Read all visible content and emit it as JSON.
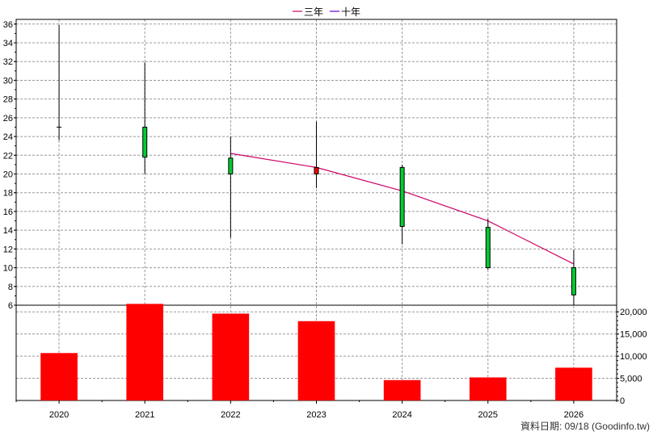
{
  "chart_data": {
    "type": "candlestick",
    "legend": {
      "position": "top-center",
      "items": [
        {
          "label": "三年",
          "color": "#cc0066"
        },
        {
          "label": "十年",
          "color": "#6600cc"
        }
      ]
    },
    "categories": [
      "2020",
      "2021",
      "2022",
      "2023",
      "2024",
      "2025",
      "2026"
    ],
    "candles": [
      {
        "year": "2020",
        "open": 25.0,
        "close": 25.0,
        "high": 35.9,
        "low": 23.6
      },
      {
        "year": "2021",
        "open": 21.8,
        "close": 25.0,
        "high": 31.9,
        "low": 20.0
      },
      {
        "year": "2022",
        "open": 20.0,
        "close": 21.7,
        "high": 24.0,
        "low": 13.2
      },
      {
        "year": "2023",
        "open": 20.7,
        "close": 20.0,
        "high": 25.6,
        "low": 18.5
      },
      {
        "year": "2024",
        "open": 14.4,
        "close": 20.7,
        "high": 21.0,
        "low": 12.5
      },
      {
        "year": "2025",
        "open": 10.0,
        "close": 14.3,
        "high": 15.2,
        "low": 9.8
      },
      {
        "year": "2026",
        "open": 7.1,
        "close": 10.0,
        "high": 11.9,
        "low": 6.0
      }
    ],
    "three_year_line": [
      {
        "year": "2022",
        "value": 22.2
      },
      {
        "year": "2023",
        "value": 20.7
      },
      {
        "year": "2024",
        "value": 18.2
      },
      {
        "year": "2025",
        "value": 15.0
      },
      {
        "year": "2026",
        "value": 10.4
      }
    ],
    "price_axis": {
      "ylim": [
        6,
        36.5
      ],
      "ticks": [
        "36",
        "34",
        "32",
        "30",
        "28",
        "26",
        "24",
        "22",
        "20",
        "18",
        "16",
        "14",
        "12",
        "10",
        "8",
        "6"
      ]
    },
    "volume": {
      "values": [
        10700,
        21800,
        19600,
        17900,
        4600,
        5200,
        7400
      ],
      "color": "#ff0000",
      "ylim": [
        0,
        21500
      ],
      "ticks": [
        "20,000",
        "15,000",
        "10,000",
        "5,000",
        "0"
      ]
    },
    "grid": true
  },
  "footer": {
    "note": "資料日期: 09/18  (Goodinfo.tw)"
  },
  "colors": {
    "up_candle": "#00cc33",
    "down_candle": "#ee0000",
    "grid": "#999999"
  }
}
